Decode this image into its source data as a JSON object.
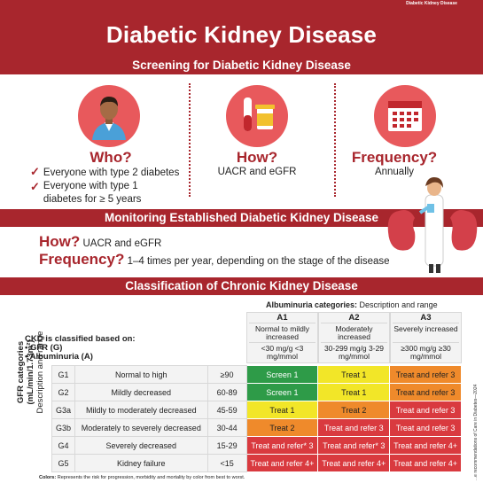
{
  "logo_text": "Diabetic Kidney Disease",
  "title": "Diabetic Kidney Disease",
  "screening": {
    "bar": "Screening for Diabetic Kidney Disease",
    "who": {
      "heading": "Who?",
      "items": [
        "Everyone with type 2 diabetes",
        "Everyone with type 1 diabetes for ≥ 5 years"
      ]
    },
    "how": {
      "heading": "How?",
      "text": "UACR and eGFR"
    },
    "frequency": {
      "heading": "Frequency?",
      "text": "Annually"
    }
  },
  "monitoring": {
    "bar": "Monitoring Established Diabetic Kidney Disease",
    "how_label": "How?",
    "how_text": "UACR and eGFR",
    "freq_label": "Frequency?",
    "freq_text": "1–4 times per year, depending on the stage of the disease"
  },
  "classification": {
    "bar": "Classification of Chronic Kidney Disease",
    "albuminuria_title": "Albuminuria categories:",
    "albuminuria_sub": "Description and range",
    "based_on": "CKD is classified based on:",
    "bullets": [
      "• GFR (G)",
      "• Albuminuria (A)"
    ],
    "gfr_axis_1": "GFR categories",
    "gfr_axis_2": "(mL/min/1.73m²)",
    "gfr_axis_3": "Description and range",
    "a_columns": [
      {
        "code": "A1",
        "desc": "Normal to mildly increased",
        "range": "<30 mg/g <3 mg/mmol"
      },
      {
        "code": "A2",
        "desc": "Moderately increased",
        "range": "30-299 mg/g 3-29 mg/mmol"
      },
      {
        "code": "A3",
        "desc": "Severely increased",
        "range": "≥300 mg/g ≥30 mg/mmol"
      }
    ],
    "rows": [
      {
        "g": "G1",
        "desc": "Normal to high",
        "range": "≥90",
        "cells": [
          "Screen 1",
          "Treat 1",
          "Treat and refer 3"
        ],
        "colors": [
          "g",
          "y",
          "o"
        ]
      },
      {
        "g": "G2",
        "desc": "Mildly decreased",
        "range": "60-89",
        "cells": [
          "Screen 1",
          "Treat 1",
          "Treat and refer 3"
        ],
        "colors": [
          "g",
          "y",
          "o"
        ]
      },
      {
        "g": "G3a",
        "desc": "Mildly to moderately decreased",
        "range": "45-59",
        "cells": [
          "Treat 1",
          "Treat 2",
          "Treat and refer 3"
        ],
        "colors": [
          "y",
          "o",
          "r"
        ]
      },
      {
        "g": "G3b",
        "desc": "Moderately to severely decreased",
        "range": "30-44",
        "cells": [
          "Treat 2",
          "Treat and refer 3",
          "Treat and refer 3"
        ],
        "colors": [
          "o",
          "r",
          "r"
        ]
      },
      {
        "g": "G4",
        "desc": "Severely decreased",
        "range": "15-29",
        "cells": [
          "Treat and refer* 3",
          "Treat and refer* 3",
          "Treat and refer 4+"
        ],
        "colors": [
          "r",
          "r",
          "r"
        ]
      },
      {
        "g": "G5",
        "desc": "Kidney failure",
        "range": "<15",
        "cells": [
          "Treat and refer 4+",
          "Treat and refer 4+",
          "Treat and refer 4+"
        ],
        "colors": [
          "r",
          "r",
          "r"
        ]
      }
    ],
    "footnote_bold": "Colors:",
    "footnote_text": "Represents the risk for progression, morbidity and mortality by color from best to worst."
  },
  "side_note": "...e recommendations of Care in Diabetes—2024"
}
